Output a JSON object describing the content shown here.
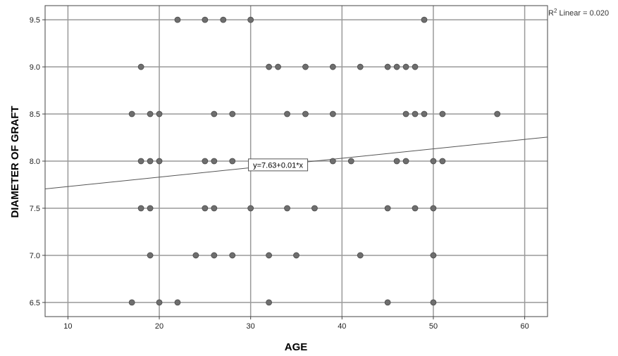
{
  "chart_data": {
    "type": "scatter",
    "xlabel": "AGE",
    "ylabel": "DIAMETER OF GRAFT",
    "xlim": [
      7.5,
      62.5
    ],
    "ylim": [
      6.35,
      9.65
    ],
    "x_ticks": [
      10,
      20,
      30,
      40,
      50,
      60
    ],
    "y_ticks": [
      6.5,
      7.0,
      7.5,
      8.0,
      8.5,
      9.0,
      9.5
    ],
    "x_tick_labels": [
      "10",
      "20",
      "30",
      "40",
      "50",
      "60"
    ],
    "y_tick_labels": [
      "6.5",
      "7.0",
      "7.5",
      "8.0",
      "8.5",
      "9.0",
      "9.5"
    ],
    "grid": true,
    "points": [
      {
        "x": 22,
        "y": 9.5
      },
      {
        "x": 25,
        "y": 9.5
      },
      {
        "x": 27,
        "y": 9.5
      },
      {
        "x": 30,
        "y": 9.5
      },
      {
        "x": 49,
        "y": 9.5
      },
      {
        "x": 18,
        "y": 9.0
      },
      {
        "x": 32,
        "y": 9.0
      },
      {
        "x": 33,
        "y": 9.0
      },
      {
        "x": 36,
        "y": 9.0
      },
      {
        "x": 39,
        "y": 9.0
      },
      {
        "x": 42,
        "y": 9.0
      },
      {
        "x": 45,
        "y": 9.0
      },
      {
        "x": 46,
        "y": 9.0
      },
      {
        "x": 47,
        "y": 9.0
      },
      {
        "x": 48,
        "y": 9.0
      },
      {
        "x": 17,
        "y": 8.5
      },
      {
        "x": 19,
        "y": 8.5
      },
      {
        "x": 20,
        "y": 8.5
      },
      {
        "x": 26,
        "y": 8.5
      },
      {
        "x": 28,
        "y": 8.5
      },
      {
        "x": 34,
        "y": 8.5
      },
      {
        "x": 36,
        "y": 8.5
      },
      {
        "x": 39,
        "y": 8.5
      },
      {
        "x": 47,
        "y": 8.5
      },
      {
        "x": 48,
        "y": 8.5
      },
      {
        "x": 49,
        "y": 8.5
      },
      {
        "x": 51,
        "y": 8.5
      },
      {
        "x": 57,
        "y": 8.5
      },
      {
        "x": 18,
        "y": 8.0
      },
      {
        "x": 19,
        "y": 8.0
      },
      {
        "x": 20,
        "y": 8.0
      },
      {
        "x": 25,
        "y": 8.0
      },
      {
        "x": 26,
        "y": 8.0
      },
      {
        "x": 28,
        "y": 8.0
      },
      {
        "x": 39,
        "y": 8.0
      },
      {
        "x": 41,
        "y": 8.0
      },
      {
        "x": 46,
        "y": 8.0
      },
      {
        "x": 47,
        "y": 8.0
      },
      {
        "x": 50,
        "y": 8.0
      },
      {
        "x": 51,
        "y": 8.0
      },
      {
        "x": 18,
        "y": 7.5
      },
      {
        "x": 19,
        "y": 7.5
      },
      {
        "x": 25,
        "y": 7.5
      },
      {
        "x": 26,
        "y": 7.5
      },
      {
        "x": 30,
        "y": 7.5
      },
      {
        "x": 34,
        "y": 7.5
      },
      {
        "x": 37,
        "y": 7.5
      },
      {
        "x": 45,
        "y": 7.5
      },
      {
        "x": 48,
        "y": 7.5
      },
      {
        "x": 50,
        "y": 7.5
      },
      {
        "x": 19,
        "y": 7.0
      },
      {
        "x": 24,
        "y": 7.0
      },
      {
        "x": 26,
        "y": 7.0
      },
      {
        "x": 28,
        "y": 7.0
      },
      {
        "x": 32,
        "y": 7.0
      },
      {
        "x": 35,
        "y": 7.0
      },
      {
        "x": 42,
        "y": 7.0
      },
      {
        "x": 50,
        "y": 7.0
      },
      {
        "x": 17,
        "y": 6.5
      },
      {
        "x": 20,
        "y": 6.5
      },
      {
        "x": 22,
        "y": 6.5
      },
      {
        "x": 32,
        "y": 6.5
      },
      {
        "x": 45,
        "y": 6.5
      },
      {
        "x": 50,
        "y": 6.5
      }
    ],
    "fit_line": {
      "intercept": 7.63,
      "slope": 0.01
    },
    "fit_equation": "y=7.63+0.01*x",
    "r2_label": "R",
    "r2_superscript": "2",
    "r2_text": " Linear = 0.020",
    "colors": {
      "marker": "#6e6e6e",
      "grid": "#9a9a9a",
      "fit_line": "#555555",
      "axis": "#444444"
    }
  }
}
